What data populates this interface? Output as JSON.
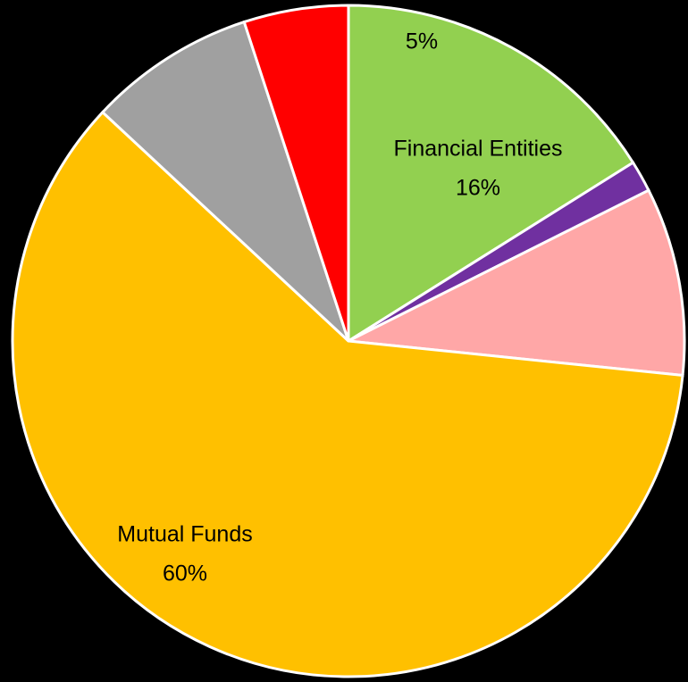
{
  "chart_data": {
    "type": "pie",
    "categories": [
      "Financial Entities",
      null,
      null,
      "Mutual Funds",
      null,
      null
    ],
    "values": [
      16,
      1.5,
      9,
      60,
      8,
      5
    ],
    "value_labels": [
      "16%",
      null,
      null,
      "60%",
      null,
      "5%"
    ],
    "colors": [
      "#92d050",
      "#7030a0",
      "#ffa7a7",
      "#ffc000",
      "#a0a0a0",
      "#ff0000"
    ]
  }
}
